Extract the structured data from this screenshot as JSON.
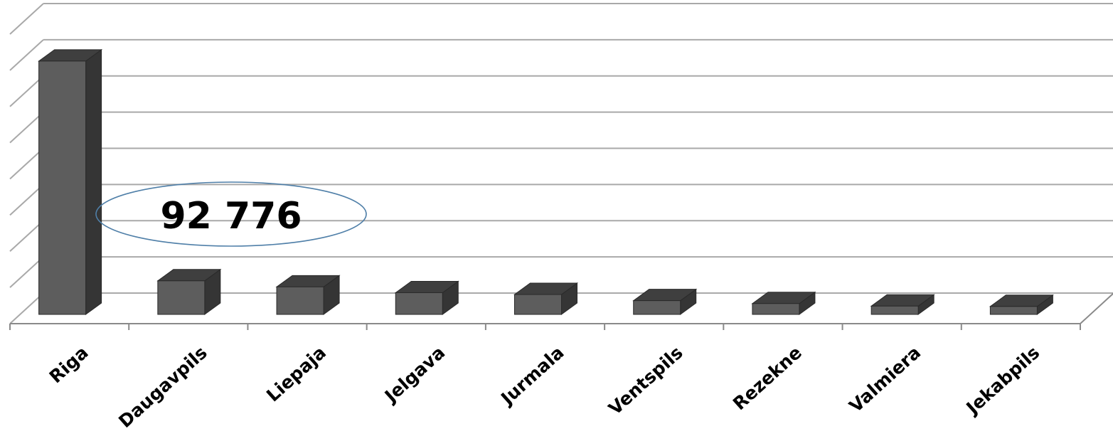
{
  "chart_data": {
    "type": "bar",
    "style": "3d-column",
    "categories": [
      "Riga",
      "Daugavpils",
      "Liepaja",
      "Jelgava",
      "Jurmala",
      "Ventspils",
      "Rezekne",
      "Valmiera",
      "Jekabpils"
    ],
    "values": [
      700000,
      92776,
      76000,
      60000,
      55000,
      38000,
      30000,
      23000,
      22000
    ],
    "ylim": [
      0,
      800000
    ],
    "grid": true,
    "axis_numbers_shown": false,
    "annotation": {
      "text": "92 776",
      "category": "Daugavpils",
      "shape": "ellipse"
    },
    "colors": {
      "bar_front": "#5d5d5d",
      "bar_top": "#3f3f3f",
      "bar_side": "#353535",
      "bar_edge": "#2a2a2a",
      "grid": "#a9a9a9",
      "axis": "#8a8a8a",
      "ellipse": "#4f7fa8"
    }
  }
}
